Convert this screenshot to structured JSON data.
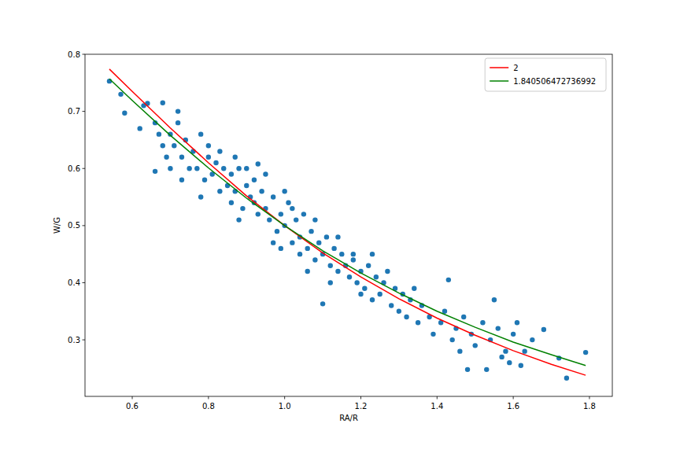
{
  "chart_data": {
    "type": "scatter",
    "x_label": "RA/R",
    "y_label": "W/G",
    "xlim": [
      0.476,
      1.86
    ],
    "ylim": [
      0.201,
      0.8
    ],
    "xticks": [
      0.6,
      0.8,
      {
        "value": 1,
        "label": "1.0"
      },
      1.2,
      1.4,
      1.6,
      1.8
    ],
    "yticks": [
      0.3,
      0.4,
      0.5,
      0.6,
      0.7,
      0.8
    ],
    "legend": "upper right",
    "grid": false,
    "series": [
      {
        "type": "scatter",
        "color": "#1f77b4",
        "marker": "circle",
        "x": [
          0.54,
          0.57,
          0.58,
          0.62,
          0.63,
          0.64,
          0.66,
          0.68,
          0.72,
          1.48,
          1.53,
          1.74,
          1.79,
          1.72,
          1.68,
          1.62,
          1.55,
          1.43,
          1.23,
          0.93,
          1.1,
          0.66,
          0.67,
          0.68,
          0.69,
          0.7,
          0.71,
          0.72,
          0.73,
          0.74,
          0.75,
          0.7,
          0.73,
          0.76,
          0.77,
          0.78,
          0.79,
          0.8,
          0.81,
          0.82,
          0.83,
          0.84,
          0.85,
          0.78,
          0.8,
          0.83,
          0.86,
          0.86,
          0.87,
          0.88,
          0.89,
          0.9,
          0.91,
          0.92,
          0.93,
          0.94,
          0.95,
          0.88,
          0.9,
          0.92,
          0.95,
          0.87,
          0.96,
          0.97,
          0.98,
          0.99,
          1.0,
          1.01,
          1.02,
          1.03,
          1.04,
          1.05,
          0.97,
          1.0,
          1.02,
          0.99,
          1.04,
          1.06,
          1.07,
          1.08,
          1.09,
          1.1,
          1.11,
          1.12,
          1.13,
          1.14,
          1.15,
          1.08,
          1.12,
          1.06,
          1.14,
          1.16,
          1.17,
          1.18,
          1.19,
          1.2,
          1.21,
          1.22,
          1.23,
          1.24,
          1.25,
          1.18,
          1.2,
          1.26,
          1.28,
          1.29,
          1.3,
          1.31,
          1.32,
          1.33,
          1.35,
          1.36,
          1.38,
          1.39,
          1.27,
          1.34,
          1.41,
          1.42,
          1.44,
          1.45,
          1.47,
          1.49,
          1.5,
          1.52,
          1.54,
          1.56,
          1.58,
          1.6,
          1.57,
          1.46,
          1.61,
          1.63,
          1.65,
          1.59
        ],
        "values": [
          0.753,
          0.73,
          0.697,
          0.67,
          0.71,
          0.714,
          0.595,
          0.715,
          0.7,
          0.248,
          0.248,
          0.233,
          0.278,
          0.268,
          0.318,
          0.255,
          0.37,
          0.405,
          0.45,
          0.608,
          0.363,
          0.68,
          0.66,
          0.64,
          0.62,
          0.66,
          0.64,
          0.68,
          0.62,
          0.65,
          0.6,
          0.6,
          0.58,
          0.63,
          0.6,
          0.66,
          0.58,
          0.62,
          0.59,
          0.61,
          0.56,
          0.6,
          0.57,
          0.55,
          0.64,
          0.63,
          0.54,
          0.59,
          0.56,
          0.6,
          0.53,
          0.57,
          0.55,
          0.58,
          0.52,
          0.56,
          0.53,
          0.51,
          0.6,
          0.54,
          0.59,
          0.62,
          0.51,
          0.55,
          0.49,
          0.52,
          0.5,
          0.54,
          0.47,
          0.51,
          0.48,
          0.52,
          0.47,
          0.56,
          0.53,
          0.46,
          0.45,
          0.46,
          0.49,
          0.44,
          0.47,
          0.45,
          0.48,
          0.43,
          0.46,
          0.42,
          0.45,
          0.51,
          0.4,
          0.42,
          0.48,
          0.43,
          0.41,
          0.44,
          0.4,
          0.42,
          0.39,
          0.43,
          0.37,
          0.41,
          0.38,
          0.45,
          0.38,
          0.4,
          0.36,
          0.39,
          0.35,
          0.38,
          0.34,
          0.37,
          0.33,
          0.36,
          0.34,
          0.31,
          0.42,
          0.39,
          0.33,
          0.35,
          0.3,
          0.32,
          0.34,
          0.31,
          0.29,
          0.33,
          0.3,
          0.32,
          0.28,
          0.31,
          0.27,
          0.28,
          0.33,
          0.28,
          0.3,
          0.26
        ]
      },
      {
        "name": "2",
        "type": "line",
        "color": "red",
        "x": [
          0.54,
          0.6,
          0.7,
          0.8,
          0.9,
          1.0,
          1.1,
          1.2,
          1.3,
          1.4,
          1.5,
          1.6,
          1.7,
          1.79
        ],
        "values": [
          0.774,
          0.735,
          0.671,
          0.61,
          0.552,
          0.5,
          0.452,
          0.41,
          0.372,
          0.338,
          0.308,
          0.281,
          0.257,
          0.238
        ]
      },
      {
        "name": "1.840506472736992",
        "type": "line",
        "color": "green",
        "x": [
          0.54,
          0.6,
          0.7,
          0.8,
          0.9,
          1.0,
          1.1,
          1.2,
          1.3,
          1.4,
          1.5,
          1.6,
          1.7,
          1.79
        ],
        "values": [
          0.757,
          0.719,
          0.658,
          0.601,
          0.548,
          0.5,
          0.456,
          0.417,
          0.382,
          0.35,
          0.322,
          0.296,
          0.274,
          0.255
        ]
      }
    ]
  }
}
